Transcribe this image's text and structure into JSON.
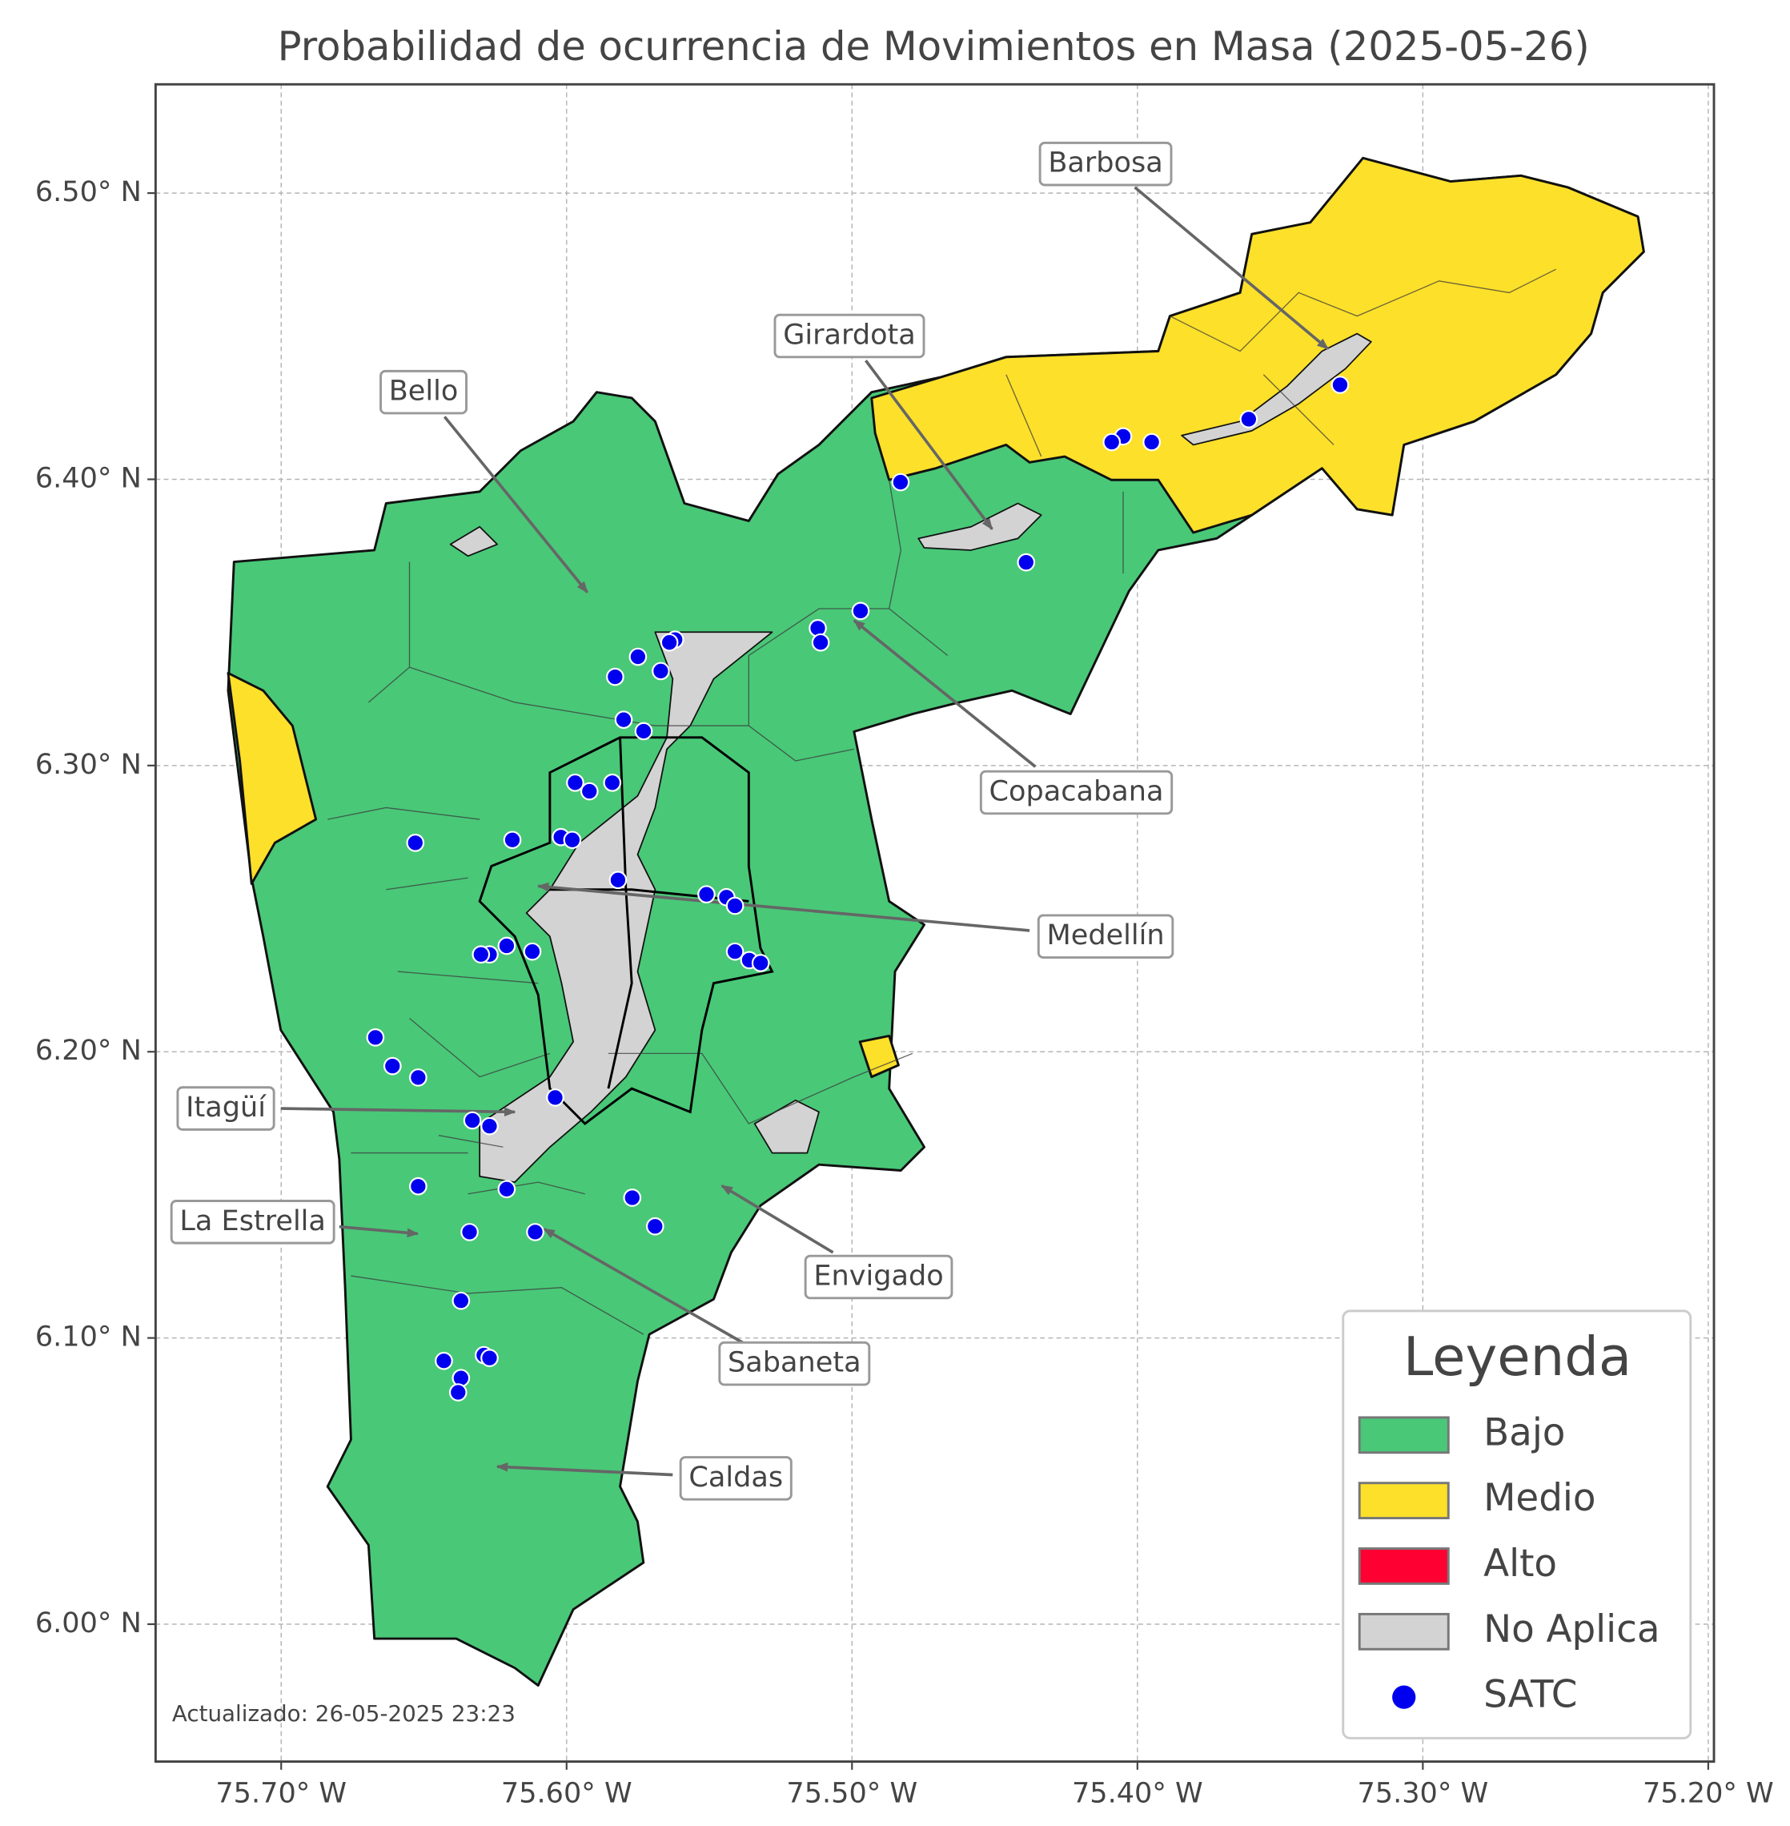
{
  "title": "Probabilidad de ocurrencia de Movimientos en Masa (2025-05-26)",
  "map": {
    "xlim": [
      -75.744,
      -75.198
    ],
    "ylim": [
      5.952,
      6.538
    ],
    "grid": true,
    "xticks": [
      {
        "value": -75.7,
        "label": "75.70° W"
      },
      {
        "value": -75.6,
        "label": "75.60° W"
      },
      {
        "value": -75.5,
        "label": "75.50° W"
      },
      {
        "value": -75.4,
        "label": "75.40° W"
      },
      {
        "value": -75.3,
        "label": "75.30° W"
      },
      {
        "value": -75.2,
        "label": "75.20° W"
      }
    ],
    "yticks": [
      {
        "value": 6.0,
        "label": "6.00° N"
      },
      {
        "value": 6.1,
        "label": "6.10° N"
      },
      {
        "value": 6.2,
        "label": "6.20° N"
      },
      {
        "value": 6.3,
        "label": "6.30° N"
      },
      {
        "value": 6.4,
        "label": "6.40° N"
      },
      {
        "value": 6.5,
        "label": "6.50° N"
      }
    ]
  },
  "annotations": [
    "Barbosa",
    "Girardota",
    "Bello",
    "Copacabana",
    "Medellín",
    "Itagüí",
    "La Estrella",
    "Envigado",
    "Sabaneta",
    "Caldas"
  ],
  "legend": {
    "title": "Leyenda",
    "items": [
      {
        "label": "Bajo",
        "color": "#49c878"
      },
      {
        "label": "Medio",
        "color": "#fde02a"
      },
      {
        "label": "Alto",
        "color": "#ff0033"
      },
      {
        "label": "No Aplica",
        "color": "#d3d3d3"
      },
      {
        "label": "SATC",
        "color": "#0000ee"
      }
    ]
  },
  "satc": {
    "lon": [
      -75.483,
      -75.329,
      -75.361,
      -75.395,
      -75.405,
      -75.409,
      -75.439,
      -75.497,
      -75.512,
      -75.511,
      -75.562,
      -75.564,
      -75.575,
      -75.583,
      -75.567,
      -75.58,
      -75.573,
      -75.597,
      -75.592,
      -75.584,
      -75.653,
      -75.619,
      -75.602,
      -75.598,
      -75.582,
      -75.551,
      -75.544,
      -75.541,
      -75.541,
      -75.536,
      -75.532,
      -75.612,
      -75.627,
      -75.63,
      -75.621,
      -75.667,
      -75.661,
      -75.652,
      -75.604,
      -75.633,
      -75.627,
      -75.652,
      -75.621,
      -75.577,
      -75.569,
      -75.634,
      -75.611,
      -75.637,
      -75.643,
      -75.629,
      -75.627,
      -75.637,
      -75.638
    ],
    "lat": [
      6.399,
      6.433,
      6.421,
      6.413,
      6.415,
      6.413,
      6.371,
      6.354,
      6.348,
      6.343,
      6.344,
      6.343,
      6.338,
      6.331,
      6.333,
      6.316,
      6.312,
      6.294,
      6.291,
      6.294,
      6.273,
      6.274,
      6.275,
      6.274,
      6.26,
      6.255,
      6.254,
      6.251,
      6.235,
      6.232,
      6.231,
      6.235,
      6.234,
      6.234,
      6.237,
      6.205,
      6.195,
      6.191,
      6.184,
      6.176,
      6.174,
      6.153,
      6.152,
      6.149,
      6.139,
      6.137,
      6.137,
      6.113,
      6.092,
      6.094,
      6.093,
      6.086,
      6.081
    ]
  },
  "footer": "Actualizado: 26-05-2025 23:23"
}
